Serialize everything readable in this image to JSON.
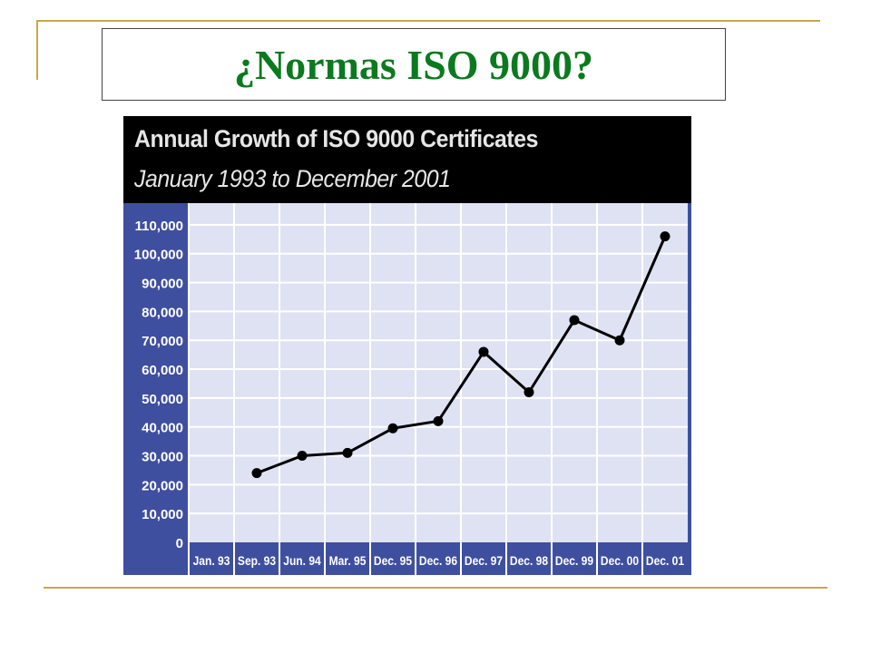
{
  "slide": {
    "title": "¿Normas ISO 9000?"
  },
  "colors": {
    "title_text": "#0b7a1f",
    "accent_lines": "#c8a84b",
    "axis_band": "#3f4fa0",
    "plot_bg": "#dfe2f3",
    "grid": "#ffffff",
    "line": "#000000"
  },
  "chart_data": {
    "type": "line",
    "title": "Annual Growth of ISO 9000 Certificates",
    "subtitle": "January 1993 to December 2001",
    "xlabel": "",
    "ylabel": "",
    "categories": [
      "Jan. 93",
      "Sep. 93",
      "Jun. 94",
      "Mar. 95",
      "Dec. 95",
      "Dec. 96",
      "Dec. 97",
      "Dec. 98",
      "Dec. 99",
      "Dec. 00",
      "Dec. 01"
    ],
    "y_ticks": [
      "0",
      "10,000",
      "20,000",
      "30,000",
      "40,000",
      "50,000",
      "60,000",
      "70,000",
      "80,000",
      "90,000",
      "100,000",
      "110,000"
    ],
    "ylim": [
      0,
      115000
    ],
    "grid": true,
    "legend": "none",
    "series": [
      {
        "values": [
          null,
          24000,
          30000,
          31000,
          39500,
          42000,
          66000,
          52000,
          77000,
          70000,
          106000
        ]
      }
    ]
  }
}
